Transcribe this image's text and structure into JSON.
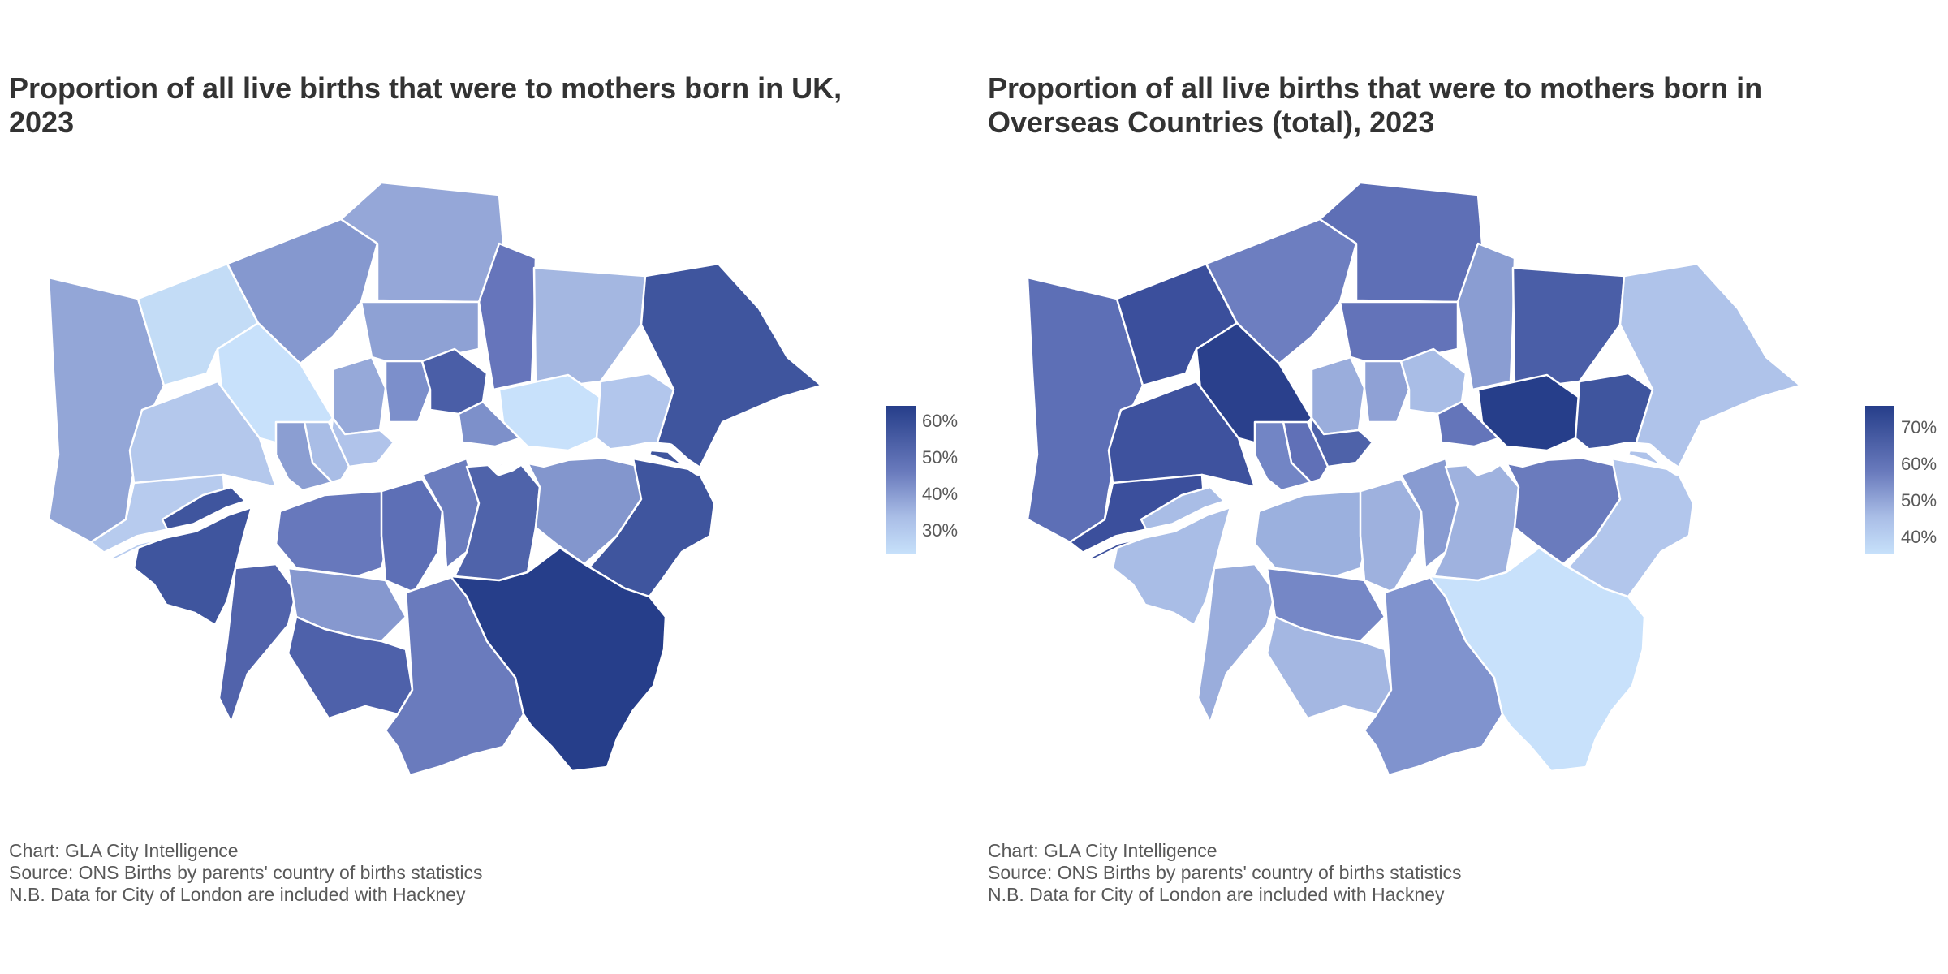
{
  "colors": {
    "low": "#c6e0fa",
    "mid": "#6a7bbd",
    "high": "#263e8a",
    "title": "#333333",
    "caption": "#595959",
    "river": "#ffffff"
  },
  "panels": [
    {
      "title": "Proportion of all live births that were to mothers born in UK, 2023",
      "legend": {
        "ticks": [
          "60%",
          "50%",
          "40%",
          "30%"
        ],
        "min": 25,
        "max": 64
      },
      "caption": [
        "Chart: GLA City Intelligence",
        "Source: ONS Births by parents' country of births statistics",
        "N.B. Data for City of London are included with Hackney"
      ],
      "map_data": {
        "type": "choropleth",
        "unit": "%"
      }
    },
    {
      "title": "Proportion of all live births that were to mothers born in Overseas Countries (total), 2023",
      "legend": {
        "ticks": [
          "70%",
          "60%",
          "50%",
          "40%"
        ],
        "min": 36,
        "max": 77
      },
      "caption": [
        "Chart: GLA City Intelligence",
        "Source: ONS Births by parents' country of births statistics",
        "N.B. Data for City of London are included with Hackney"
      ],
      "map_data": {
        "type": "choropleth",
        "unit": "%"
      }
    }
  ]
}
